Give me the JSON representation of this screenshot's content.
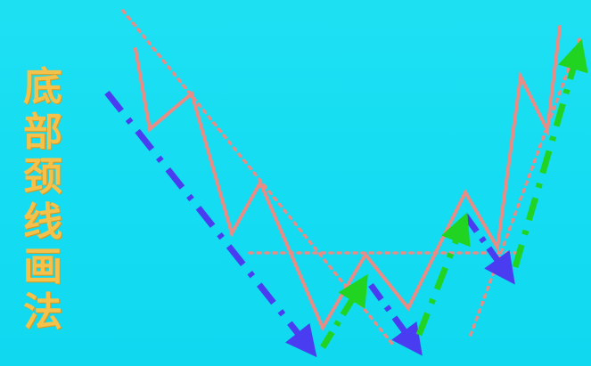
{
  "title": {
    "text": "底部颈线画法",
    "color": "#f4c24a"
  },
  "colors": {
    "background": "#18dcf2",
    "price_line": "#ea8c86",
    "guide_dotted": "#ea8c86",
    "down_arrow": "#4a3cf0",
    "up_arrow": "#22d422"
  }
}
